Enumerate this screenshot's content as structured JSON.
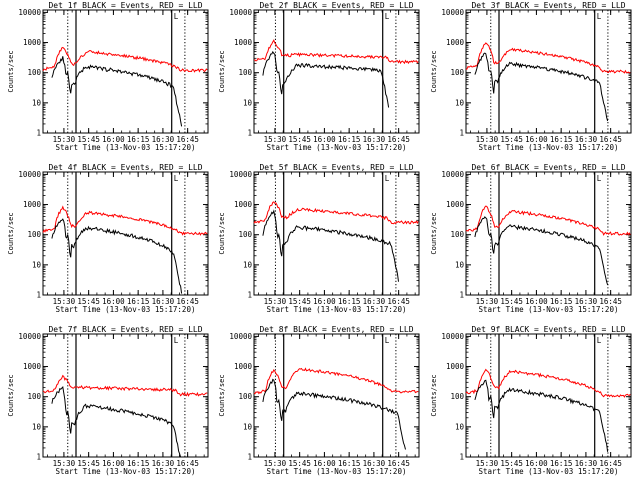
{
  "chart_data": {
    "type": "line",
    "panels": [
      {
        "title": "Det 1f BLACK = Events, RED = LLD"
      },
      {
        "title": "Det 2f BLACK = Events, RED = LLD"
      },
      {
        "title": "Det 3f BLACK = Events, RED = LLD"
      },
      {
        "title": "Det 4f BLACK = Events, RED = LLD"
      },
      {
        "title": "Det 5f BLACK = Events, RED = LLD"
      },
      {
        "title": "Det 6f BLACK = Events, RED = LLD"
      },
      {
        "title": "Det 7f BLACK = Events, RED = LLD"
      },
      {
        "title": "Det 8f BLACK = Events, RED = LLD"
      },
      {
        "title": "Det 9f BLACK = Events, RED = LLD"
      }
    ],
    "xlabel": "Start Time (13-Nov-03 15:17:20)",
    "ylabel": "Counts/sec",
    "x_ticks": [
      "15:30",
      "15:45",
      "16:00",
      "16:15",
      "16:30",
      "16:45"
    ],
    "x_tick_values": [
      12.67,
      27.67,
      42.67,
      57.67,
      72.67,
      87.67
    ],
    "y_ticks": [
      "1",
      "10",
      "100",
      "1000",
      "10000"
    ],
    "y_tick_values": [
      1,
      10,
      100,
      1000,
      10000
    ],
    "ylim": [
      1,
      12000
    ],
    "yscale": "log",
    "xlim": [
      0,
      100
    ],
    "series": [
      {
        "name": "Events",
        "color": "#000000"
      },
      {
        "name": "LLD",
        "color": "#ff0000"
      }
    ],
    "markers": {
      "solid": [
        [
          20,
          78
        ],
        [
          18,
          78
        ],
        [
          20,
          78
        ],
        [
          20,
          78
        ],
        [
          18,
          78
        ],
        [
          20,
          78
        ],
        [
          20,
          78
        ],
        [
          18,
          78
        ],
        [
          20,
          78
        ]
      ],
      "dotted": [
        [
          15,
          86
        ],
        [
          13,
          86
        ],
        [
          15,
          86
        ],
        [
          15,
          86
        ],
        [
          13,
          86
        ],
        [
          15,
          86
        ],
        [
          15,
          86
        ],
        [
          13,
          86
        ],
        [
          15,
          86
        ]
      ],
      "mark_label": "L"
    },
    "panel_params": [
      {
        "rb": 130,
        "pk": 700,
        "hump": 500,
        "end": 120,
        "bb": 160,
        "bend": 35,
        "stop": 84
      },
      {
        "rb": 250,
        "pk": 1100,
        "hump": 400,
        "end": 230,
        "bb": 180,
        "bend": 120,
        "stop": 82
      },
      {
        "rb": 140,
        "pk": 1000,
        "hump": 600,
        "end": 110,
        "bb": 200,
        "bend": 45,
        "stop": 86
      },
      {
        "rb": 130,
        "pk": 800,
        "hump": 550,
        "end": 110,
        "bb": 170,
        "bend": 25,
        "stop": 84
      },
      {
        "rb": 250,
        "pk": 1300,
        "hump": 700,
        "end": 260,
        "bb": 180,
        "bend": 50,
        "stop": 88
      },
      {
        "rb": 130,
        "pk": 900,
        "hump": 600,
        "end": 110,
        "bb": 190,
        "bend": 35,
        "stop": 86
      },
      {
        "rb": 140,
        "pk": 450,
        "hump": 200,
        "end": 120,
        "bb": 50,
        "bend": 12,
        "stop": 84
      },
      {
        "rb": 130,
        "pk": 800,
        "hump": 850,
        "end": 150,
        "bb": 130,
        "bend": 28,
        "stop": 92
      },
      {
        "rb": 130,
        "pk": 800,
        "hump": 700,
        "end": 110,
        "bb": 170,
        "bend": 30,
        "stop": 86
      }
    ]
  }
}
